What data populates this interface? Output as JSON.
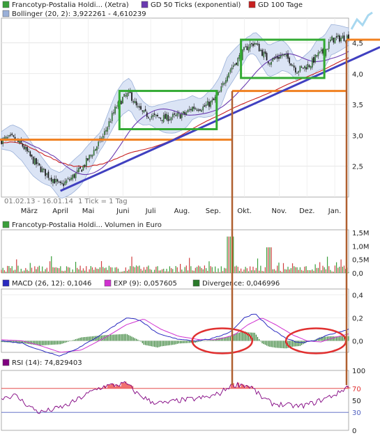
{
  "chart_data": [
    {
      "type": "line",
      "id": "price",
      "legend": [
        {
          "label": "Francotyp-Postalia Holdi... (Xetra)",
          "color": "#3a9e3a"
        },
        {
          "label": "GD 50 Ticks (exponential)",
          "color": "#6a3ab0"
        },
        {
          "label": "GD 100 Tage",
          "color": "#c82020"
        },
        {
          "label": "Bollinger (20, 2): 3,922261 - 4,610239",
          "color": "#9ab0d8"
        }
      ],
      "y_ticks": [
        "4,5",
        "4,0",
        "3,5",
        "3,0",
        "2,5"
      ],
      "y_tick_values": [
        4.5,
        4.0,
        3.5,
        3.0,
        2.5
      ],
      "ylim": [
        2.0,
        4.9
      ],
      "x_ticks": [
        "März",
        "April",
        "Mai",
        "Juni",
        "Juli",
        "Aug.",
        "Sep.",
        "Okt.",
        "Nov.",
        "Dez.",
        "Jan."
      ],
      "period_text": "01.02.13 - 16.01.14",
      "tick_text": "1 Tick = 1 Tag",
      "horizontal_lines": [
        2.93,
        3.72,
        4.55
      ],
      "trendline": {
        "from": [
          0.17,
          2.1
        ],
        "to": [
          1.0,
          4.35
        ]
      },
      "boxes": [
        {
          "x": [
            0.34,
            0.62
          ],
          "y": [
            3.1,
            3.72
          ]
        },
        {
          "x": [
            0.69,
            0.93
          ],
          "y": [
            3.93,
            4.55
          ]
        }
      ],
      "close_profile": [
        [
          0.0,
          2.92
        ],
        [
          0.03,
          2.96
        ],
        [
          0.06,
          2.84
        ],
        [
          0.09,
          2.6
        ],
        [
          0.12,
          2.42
        ],
        [
          0.15,
          2.28
        ],
        [
          0.17,
          2.18
        ],
        [
          0.2,
          2.3
        ],
        [
          0.23,
          2.45
        ],
        [
          0.26,
          2.7
        ],
        [
          0.29,
          2.95
        ],
        [
          0.31,
          3.2
        ],
        [
          0.33,
          3.45
        ],
        [
          0.35,
          3.6
        ],
        [
          0.37,
          3.68
        ],
        [
          0.39,
          3.45
        ],
        [
          0.41,
          3.35
        ],
        [
          0.44,
          3.3
        ],
        [
          0.47,
          3.28
        ],
        [
          0.5,
          3.3
        ],
        [
          0.53,
          3.35
        ],
        [
          0.55,
          3.45
        ],
        [
          0.58,
          3.45
        ],
        [
          0.61,
          3.55
        ],
        [
          0.63,
          3.7
        ],
        [
          0.65,
          4.0
        ],
        [
          0.67,
          4.15
        ],
        [
          0.69,
          4.3
        ],
        [
          0.71,
          4.45
        ],
        [
          0.73,
          4.5
        ],
        [
          0.75,
          4.35
        ],
        [
          0.77,
          4.2
        ],
        [
          0.79,
          4.25
        ],
        [
          0.81,
          4.3
        ],
        [
          0.83,
          4.22
        ],
        [
          0.85,
          4.05
        ],
        [
          0.87,
          4.1
        ],
        [
          0.89,
          4.15
        ],
        [
          0.91,
          4.3
        ],
        [
          0.93,
          4.35
        ],
        [
          0.95,
          4.55
        ],
        [
          1.0,
          4.6
        ]
      ]
    },
    {
      "type": "bar",
      "id": "volume",
      "legend": [
        {
          "label": "Francotyp-Postalia Holdi... Volumen in Euro",
          "color": "#3a9e3a"
        }
      ],
      "y_ticks": [
        "1,5M",
        "1,0M",
        "0,5M",
        "0,0"
      ],
      "y_tick_values": [
        1.5,
        1.0,
        0.5,
        0.0
      ],
      "ylim": [
        0,
        1.6
      ],
      "unit": "Mio. Euro"
    },
    {
      "type": "line",
      "id": "macd",
      "legend": [
        {
          "label": "MACD (26, 12): 0,1046",
          "color": "#2a2ac0"
        },
        {
          "label": "EXP (9): 0,057605",
          "color": "#d030d0"
        },
        {
          "label": "Divergence: 0,046996",
          "color": "#2a7a2a"
        }
      ],
      "y_ticks": [
        "0,4",
        "0,2",
        "0,0"
      ],
      "y_tick_values": [
        0.4,
        0.2,
        0.0
      ],
      "ylim": [
        -0.1,
        0.45
      ],
      "macd_profile": [
        [
          0.0,
          0.0
        ],
        [
          0.06,
          -0.02
        ],
        [
          0.11,
          -0.08
        ],
        [
          0.17,
          -0.13
        ],
        [
          0.23,
          -0.05
        ],
        [
          0.3,
          0.08
        ],
        [
          0.36,
          0.2
        ],
        [
          0.4,
          0.18
        ],
        [
          0.45,
          0.06
        ],
        [
          0.5,
          0.02
        ],
        [
          0.56,
          0.0
        ],
        [
          0.61,
          0.02
        ],
        [
          0.66,
          0.08
        ],
        [
          0.7,
          0.2
        ],
        [
          0.73,
          0.24
        ],
        [
          0.77,
          0.12
        ],
        [
          0.82,
          0.02
        ],
        [
          0.86,
          -0.02
        ],
        [
          0.9,
          0.0
        ],
        [
          0.95,
          0.06
        ],
        [
          1.0,
          0.1
        ]
      ],
      "exp_profile": [
        [
          0.0,
          0.01
        ],
        [
          0.06,
          0.0
        ],
        [
          0.11,
          -0.04
        ],
        [
          0.17,
          -0.1
        ],
        [
          0.23,
          -0.08
        ],
        [
          0.3,
          0.03
        ],
        [
          0.36,
          0.14
        ],
        [
          0.41,
          0.19
        ],
        [
          0.46,
          0.1
        ],
        [
          0.51,
          0.04
        ],
        [
          0.57,
          0.01
        ],
        [
          0.62,
          0.01
        ],
        [
          0.67,
          0.05
        ],
        [
          0.71,
          0.14
        ],
        [
          0.75,
          0.2
        ],
        [
          0.79,
          0.14
        ],
        [
          0.84,
          0.05
        ],
        [
          0.88,
          0.0
        ],
        [
          0.92,
          -0.01
        ],
        [
          0.96,
          0.03
        ],
        [
          1.0,
          0.06
        ]
      ],
      "ellipses": [
        {
          "cx": 0.62,
          "cy": 0.0
        },
        {
          "cx": 0.89,
          "cy": 0.0
        }
      ]
    },
    {
      "type": "line",
      "id": "rsi",
      "legend": [
        {
          "label": "RSI (14): 74,829403",
          "color": "#800080"
        }
      ],
      "y_ticks": [
        "100",
        "70",
        "50",
        "30",
        "0"
      ],
      "y_tick_values": [
        100,
        70,
        50,
        30,
        0
      ],
      "ylim": [
        0,
        100
      ],
      "reference_lines": [
        70,
        30
      ],
      "rsi_profile": [
        [
          0.0,
          55
        ],
        [
          0.04,
          58
        ],
        [
          0.08,
          40
        ],
        [
          0.11,
          30
        ],
        [
          0.15,
          35
        ],
        [
          0.19,
          42
        ],
        [
          0.23,
          55
        ],
        [
          0.27,
          68
        ],
        [
          0.3,
          74
        ],
        [
          0.33,
          76
        ],
        [
          0.36,
          78
        ],
        [
          0.39,
          62
        ],
        [
          0.43,
          48
        ],
        [
          0.47,
          45
        ],
        [
          0.51,
          50
        ],
        [
          0.55,
          52
        ],
        [
          0.6,
          56
        ],
        [
          0.63,
          62
        ],
        [
          0.66,
          75
        ],
        [
          0.69,
          77
        ],
        [
          0.72,
          72
        ],
        [
          0.75,
          55
        ],
        [
          0.78,
          45
        ],
        [
          0.82,
          42
        ],
        [
          0.86,
          40
        ],
        [
          0.9,
          46
        ],
        [
          0.94,
          55
        ],
        [
          0.97,
          62
        ],
        [
          1.0,
          75
        ]
      ]
    }
  ],
  "colors": {
    "green": "#33aa33",
    "orange": "#f08020",
    "trend": "#4040c0",
    "brown": "#b06030",
    "red": "#e03030"
  }
}
